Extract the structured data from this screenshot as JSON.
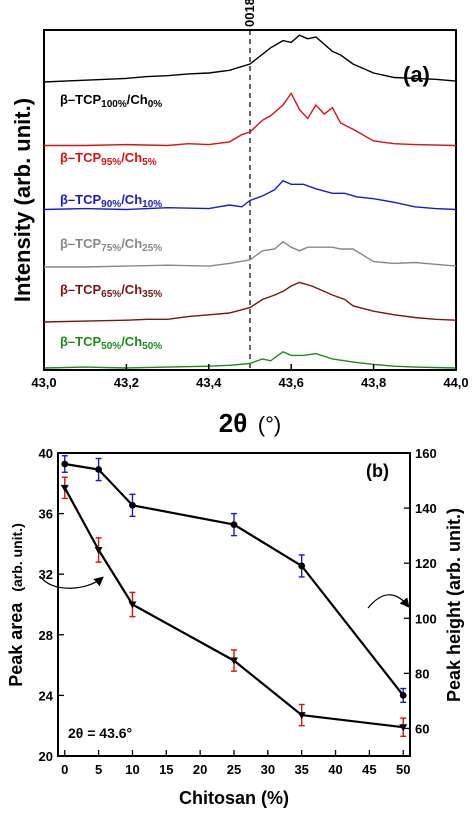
{
  "chart_data": [
    {
      "type": "line",
      "panel_label": "(a)",
      "xlabel_main": "2θ",
      "xlabel_unit": "(°)",
      "ylabel": "Intensity (arb. unit.)",
      "xlim": [
        43.0,
        44.0
      ],
      "x_ticks": [
        "43,0",
        "43,2",
        "43,4",
        "43,6",
        "43,8",
        "44,0"
      ],
      "y_ticks": [],
      "reference_line": {
        "x": 43.5,
        "label": "0018",
        "style": "dashed"
      },
      "series": [
        {
          "name": "β–TCP100%/Ch0%",
          "label_parts": [
            "β–TCP",
            "100%",
            "/Ch",
            "0%"
          ],
          "color": "#000000",
          "baseline": 92,
          "values": [
            [
              43.0,
              0
            ],
            [
              43.05,
              1
            ],
            [
              43.1,
              2
            ],
            [
              43.15,
              3
            ],
            [
              43.2,
              4
            ],
            [
              43.25,
              6
            ],
            [
              43.3,
              7
            ],
            [
              43.35,
              9
            ],
            [
              43.4,
              10
            ],
            [
              43.45,
              13
            ],
            [
              43.5,
              20
            ],
            [
              43.55,
              38
            ],
            [
              43.58,
              46
            ],
            [
              43.6,
              44
            ],
            [
              43.62,
              52
            ],
            [
              43.64,
              48
            ],
            [
              43.66,
              50
            ],
            [
              43.68,
              42
            ],
            [
              43.7,
              34
            ],
            [
              43.72,
              30
            ],
            [
              43.75,
              20
            ],
            [
              43.8,
              10
            ],
            [
              43.85,
              5
            ],
            [
              43.9,
              4
            ],
            [
              43.95,
              3
            ],
            [
              44.0,
              1
            ]
          ]
        },
        {
          "name": "β–TCP95%/Ch5%",
          "label_parts": [
            "β–TCP",
            "95%",
            "/Ch",
            "5%"
          ],
          "color": "#dd1111",
          "baseline": 78,
          "values": [
            [
              43.0,
              0
            ],
            [
              43.1,
              0
            ],
            [
              43.2,
              1
            ],
            [
              43.3,
              0
            ],
            [
              43.35,
              2
            ],
            [
              43.4,
              1
            ],
            [
              43.45,
              4
            ],
            [
              43.48,
              12
            ],
            [
              43.5,
              15
            ],
            [
              43.53,
              28
            ],
            [
              43.55,
              33
            ],
            [
              43.58,
              45
            ],
            [
              43.6,
              58
            ],
            [
              43.62,
              40
            ],
            [
              43.64,
              30
            ],
            [
              43.66,
              45
            ],
            [
              43.68,
              35
            ],
            [
              43.7,
              42
            ],
            [
              43.72,
              25
            ],
            [
              43.75,
              18
            ],
            [
              43.8,
              5
            ],
            [
              43.85,
              2
            ],
            [
              43.9,
              1
            ],
            [
              44.0,
              0
            ]
          ]
        },
        {
          "name": "β–TCP90%/Ch10%",
          "label_parts": [
            "β–TCP",
            "90%",
            "/Ch",
            "10%"
          ],
          "color": "#1a1acc",
          "baseline": 50,
          "values": [
            [
              43.0,
              0
            ],
            [
              43.1,
              1
            ],
            [
              43.2,
              0
            ],
            [
              43.3,
              2
            ],
            [
              43.4,
              1
            ],
            [
              43.45,
              5
            ],
            [
              43.48,
              3
            ],
            [
              43.5,
              10
            ],
            [
              43.53,
              15
            ],
            [
              43.56,
              22
            ],
            [
              43.58,
              32
            ],
            [
              43.6,
              28
            ],
            [
              43.63,
              28
            ],
            [
              43.66,
              23
            ],
            [
              43.7,
              18
            ],
            [
              43.73,
              18
            ],
            [
              43.76,
              14
            ],
            [
              43.8,
              12
            ],
            [
              43.85,
              8
            ],
            [
              43.9,
              3
            ],
            [
              43.95,
              1
            ],
            [
              44.0,
              0
            ]
          ]
        },
        {
          "name": "β–TCP75%/Ch25%",
          "label_parts": [
            "β–TCP",
            "75%",
            "/Ch",
            "25%"
          ],
          "color": "#888888",
          "baseline": 12,
          "values": [
            [
              43.0,
              0
            ],
            [
              43.1,
              0
            ],
            [
              43.2,
              1
            ],
            [
              43.3,
              2
            ],
            [
              43.4,
              1
            ],
            [
              43.45,
              4
            ],
            [
              43.5,
              8
            ],
            [
              43.53,
              18
            ],
            [
              43.56,
              20
            ],
            [
              43.58,
              28
            ],
            [
              43.6,
              22
            ],
            [
              43.62,
              18
            ],
            [
              43.64,
              22
            ],
            [
              43.67,
              22
            ],
            [
              43.7,
              22
            ],
            [
              43.72,
              20
            ],
            [
              43.75,
              20
            ],
            [
              43.8,
              6
            ],
            [
              43.85,
              4
            ],
            [
              43.9,
              5
            ],
            [
              43.95,
              3
            ],
            [
              44.0,
              1
            ]
          ]
        },
        {
          "name": "β–TCP65%/Ch35%",
          "label_parts": [
            "β–TCP",
            "65%",
            "/Ch",
            "35%"
          ],
          "color": "#7b1414",
          "baseline": 0,
          "values": [
            [
              43.0,
              0
            ],
            [
              43.1,
              1
            ],
            [
              43.2,
              2
            ],
            [
              43.25,
              3
            ],
            [
              43.3,
              3
            ],
            [
              43.35,
              6
            ],
            [
              43.4,
              8
            ],
            [
              43.45,
              10
            ],
            [
              43.5,
              16
            ],
            [
              43.53,
              25
            ],
            [
              43.56,
              30
            ],
            [
              43.58,
              34
            ],
            [
              43.6,
              40
            ],
            [
              43.62,
              44
            ],
            [
              43.65,
              40
            ],
            [
              43.68,
              34
            ],
            [
              43.7,
              30
            ],
            [
              43.73,
              25
            ],
            [
              43.75,
              18
            ],
            [
              43.8,
              12
            ],
            [
              43.85,
              8
            ],
            [
              43.9,
              5
            ],
            [
              43.95,
              3
            ],
            [
              44.0,
              2
            ]
          ]
        },
        {
          "name": "β–TCP50%/Ch50%",
          "label_parts": [
            "β–TCP",
            "50%",
            "/Ch",
            "50%"
          ],
          "color": "#1a8c1a",
          "baseline": 0,
          "values": [
            [
              43.0,
              0
            ],
            [
              43.1,
              1
            ],
            [
              43.2,
              0
            ],
            [
              43.3,
              1
            ],
            [
              43.4,
              2
            ],
            [
              43.45,
              3
            ],
            [
              43.5,
              5
            ],
            [
              43.53,
              10
            ],
            [
              43.55,
              8
            ],
            [
              43.58,
              18
            ],
            [
              43.6,
              14
            ],
            [
              43.63,
              14
            ],
            [
              43.66,
              16
            ],
            [
              43.7,
              10
            ],
            [
              43.73,
              8
            ],
            [
              43.76,
              6
            ],
            [
              43.8,
              4
            ],
            [
              43.85,
              2
            ],
            [
              43.9,
              1
            ],
            [
              44.0,
              0
            ]
          ]
        }
      ]
    },
    {
      "type": "line",
      "panel_label": "(b)",
      "xlabel": "Chitosan (%)",
      "ylabel_left": "Peak area",
      "ylabel_left_unit": "(arb. unit.)",
      "ylabel_right": "Peak height (arb. unit.)",
      "annotation": "2θ = 43.6°",
      "x_ticks": [
        "0",
        "5",
        "10",
        "15",
        "20",
        "25",
        "30",
        "35",
        "40",
        "45",
        "50"
      ],
      "xlim": [
        -1,
        51
      ],
      "ylim_left": [
        20,
        40
      ],
      "yticks_left": [
        "20",
        "24",
        "28",
        "32",
        "36",
        "40"
      ],
      "ylim_right": [
        50,
        160
      ],
      "yticks_right": [
        "60",
        "80",
        "100",
        "120",
        "140",
        "160"
      ],
      "series": [
        {
          "name": "Peak area",
          "axis": "left",
          "marker": "triangle-down",
          "x": [
            0,
            5,
            10,
            25,
            35,
            50
          ],
          "y": [
            37.7,
            33.6,
            30.0,
            26.3,
            22.7,
            21.9
          ],
          "err": [
            0.7,
            0.8,
            0.8,
            0.7,
            0.7,
            0.6
          ]
        },
        {
          "name": "Peak height",
          "axis": "right",
          "marker": "circle",
          "x": [
            0,
            5,
            10,
            25,
            35,
            50
          ],
          "y": [
            156,
            154,
            141,
            134,
            119,
            72
          ],
          "err": [
            3,
            4,
            4,
            4,
            4,
            2.5
          ]
        }
      ]
    }
  ]
}
